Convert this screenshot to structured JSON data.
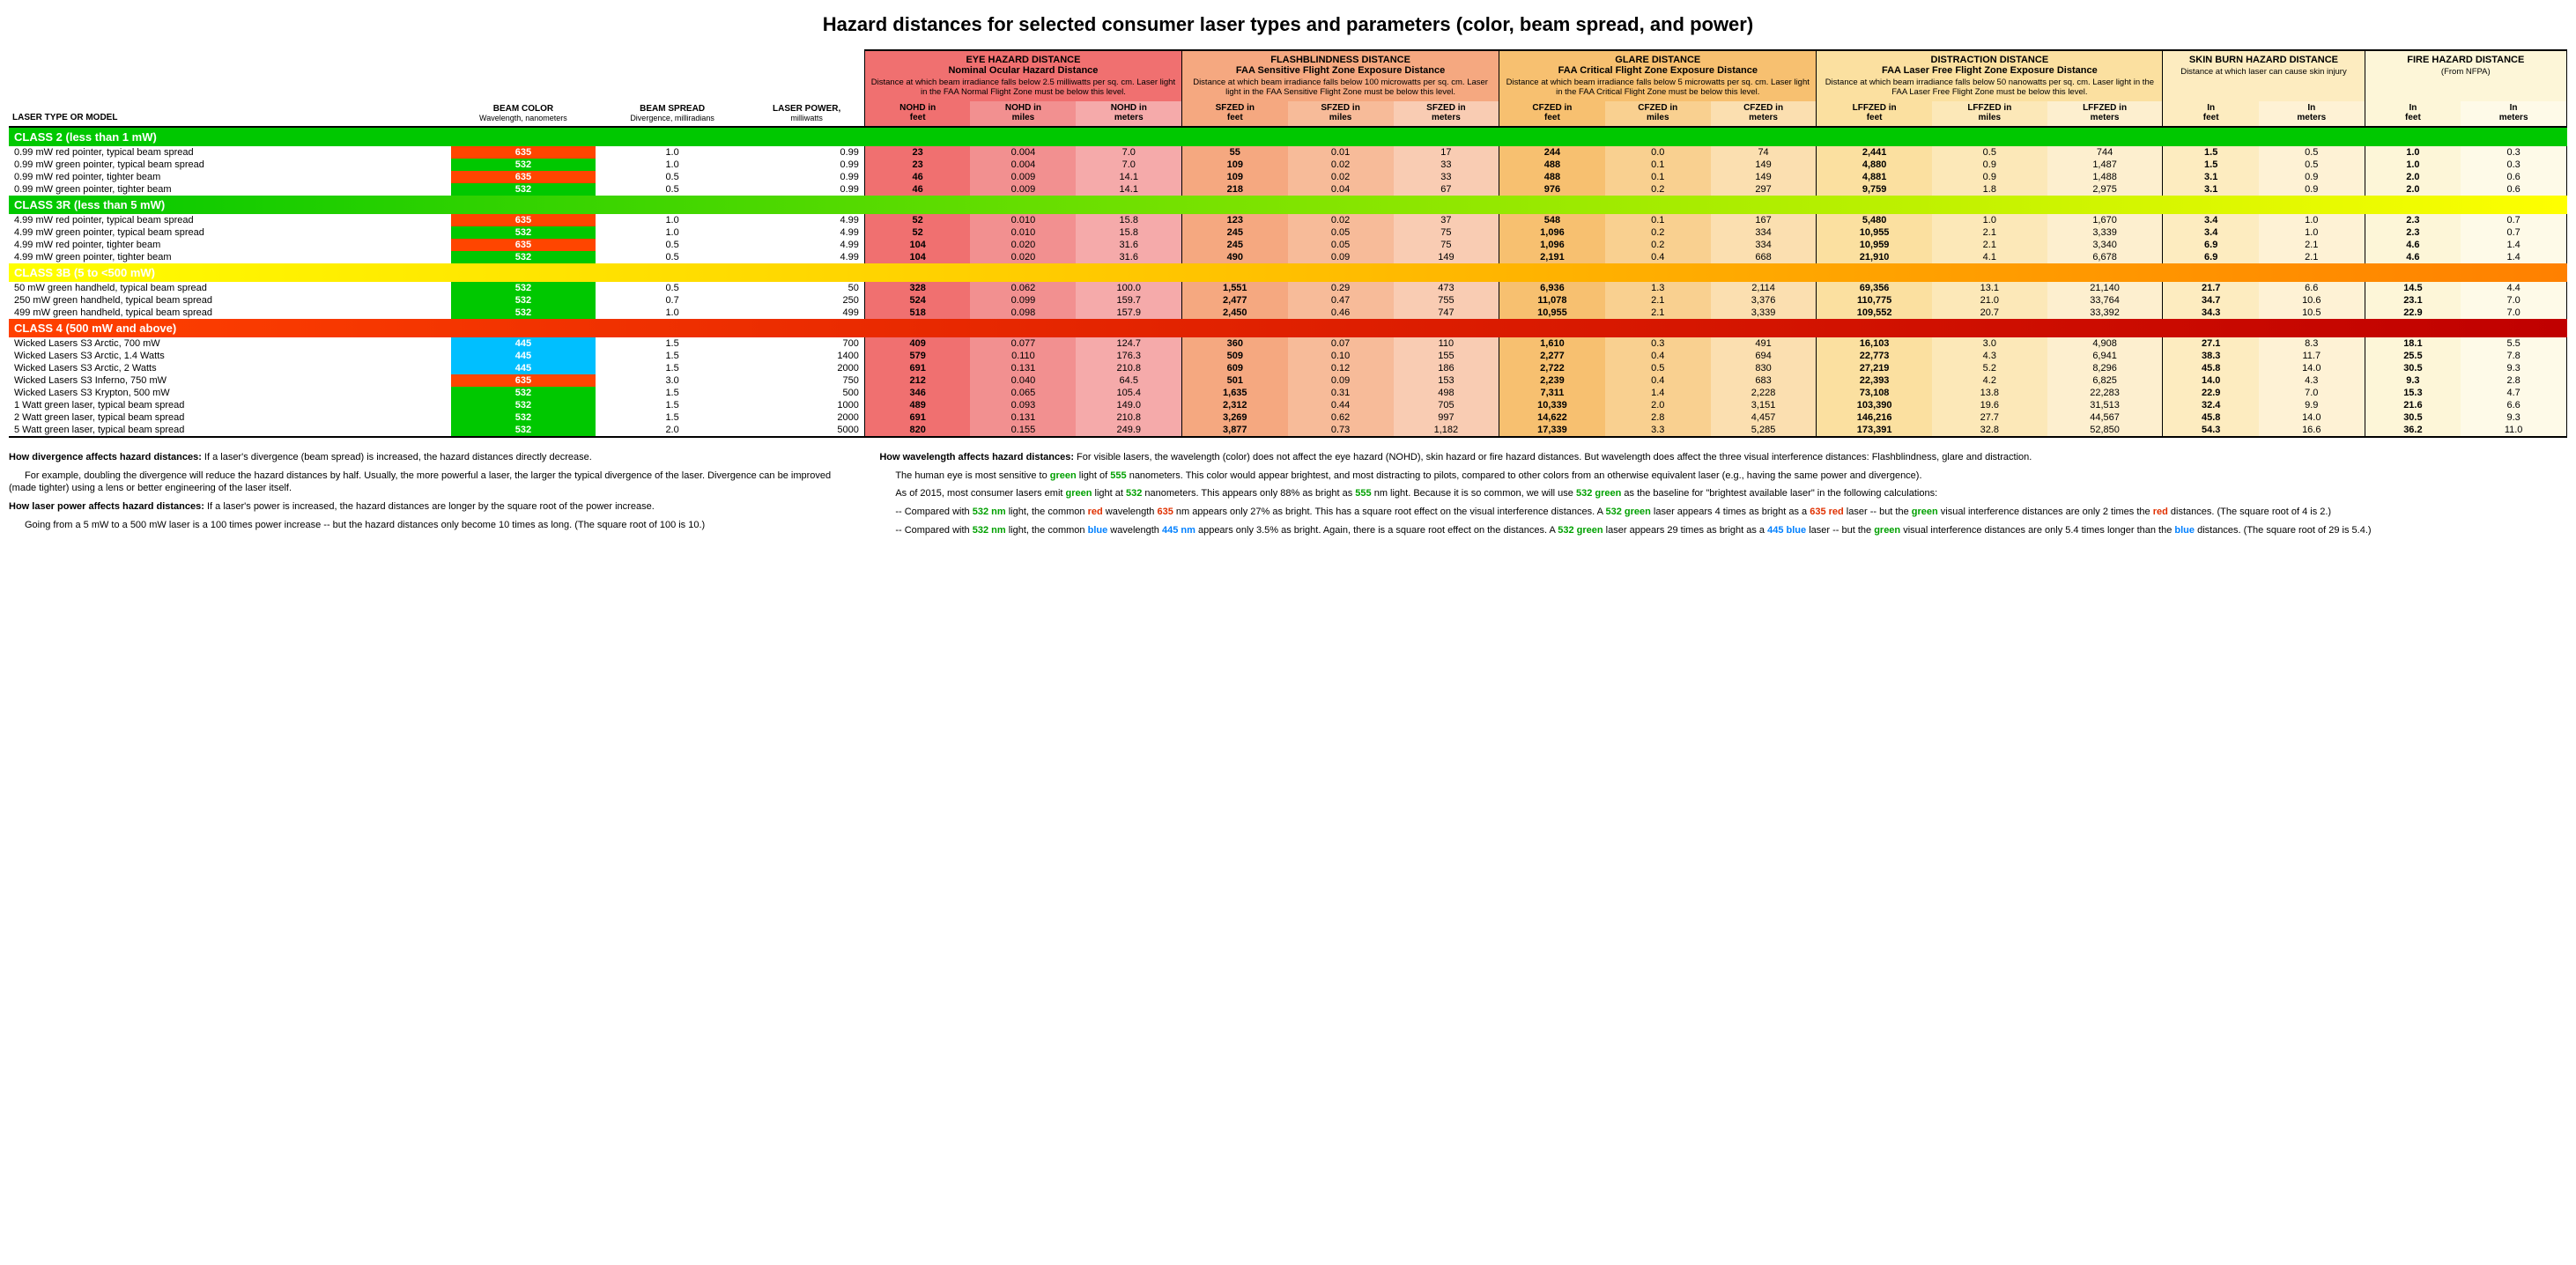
{
  "title": "Hazard distances for selected consumer laser types and parameters (color, beam spread, and power)",
  "leftHeaders": {
    "model": "LASER TYPE OR MODEL",
    "color": "BEAM COLOR",
    "colorSub": "Wavelength, nanometers",
    "spread": "BEAM SPREAD",
    "spreadSub": "Divergence, milliradians",
    "power": "LASER POWER,",
    "powerSub": "milliwatts"
  },
  "groups": [
    {
      "title": "EYE HAZARD DISTANCE",
      "sub": "Nominal Ocular Hazard Distance",
      "desc": "Distance at which beam irradiance falls below 2.5 milliwatts per sq. cm. Laser light in the FAA Normal Flight Zone must be below this level.",
      "cols": [
        "NOHD in feet",
        "NOHD in miles",
        "NOHD in meters"
      ],
      "cls": [
        "g-eye1",
        "g-eye2",
        "g-eye3"
      ],
      "hcls": "g-eye1"
    },
    {
      "title": "FLASHBLINDNESS DISTANCE",
      "sub": "FAA Sensitive Flight Zone Exposure Distance",
      "desc": "Distance at which beam irradiance falls below 100 microwatts per sq. cm. Laser light in the FAA Sensitive Flight Zone must be below this level.",
      "cols": [
        "SFZED in feet",
        "SFZED in miles",
        "SFZED in meters"
      ],
      "cls": [
        "g-flash1",
        "g-flash2",
        "g-flash3"
      ],
      "hcls": "g-flash1"
    },
    {
      "title": "GLARE DISTANCE",
      "sub": "FAA Critical Flight Zone Exposure Distance",
      "desc": "Distance at which beam irradiance falls below 5 microwatts per sq. cm. Laser light in the FAA Critical Flight Zone must be below this level.",
      "cols": [
        "CFZED in feet",
        "CFZED in miles",
        "CFZED in meters"
      ],
      "cls": [
        "g-glare1",
        "g-glare2",
        "g-glare3"
      ],
      "hcls": "g-glare1"
    },
    {
      "title": "DISTRACTION DISTANCE",
      "sub": "FAA Laser Free Flight Zone Exposure Distance",
      "desc": "Distance at which beam irradiance falls below 50 nanowatts per sq. cm. Laser light in the FAA Laser Free Flight Zone must be below this level.",
      "cols": [
        "LFFZED in feet",
        "LFFZED in miles",
        "LFFZED in meters"
      ],
      "cls": [
        "g-dist1",
        "g-dist2",
        "g-dist3"
      ],
      "hcls": "g-dist1"
    },
    {
      "title": "SKIN BURN HAZARD DISTANCE",
      "sub": "",
      "desc": "Distance at which laser can cause skin injury",
      "cols": [
        "In feet",
        "In meters"
      ],
      "cls": [
        "g-skin1",
        "g-skin2"
      ],
      "hcls": "g-skin1"
    },
    {
      "title": "FIRE HAZARD DISTANCE",
      "sub": "",
      "desc": "(From NFPA)",
      "cols": [
        "In feet",
        "In meters"
      ],
      "cls": [
        "g-fire1",
        "g-fire2"
      ],
      "hcls": "g-fire1"
    }
  ],
  "sections": [
    {
      "label": "CLASS 2 (less than 1 mW)",
      "cls": "class2-bg",
      "rows": [
        {
          "name": "0.99 mW red pointer, typical beam spread",
          "wl": "635",
          "wlc": "wl-red",
          "div": "1.0",
          "pw": "0.99",
          "v": [
            "23",
            "0.004",
            "7.0",
            "55",
            "0.01",
            "17",
            "244",
            "0.0",
            "74",
            "2,441",
            "0.5",
            "744",
            "1.5",
            "0.5",
            "1.0",
            "0.3"
          ]
        },
        {
          "name": "0.99 mW green pointer, typical beam spread",
          "wl": "532",
          "wlc": "wl-green",
          "div": "1.0",
          "pw": "0.99",
          "v": [
            "23",
            "0.004",
            "7.0",
            "109",
            "0.02",
            "33",
            "488",
            "0.1",
            "149",
            "4,880",
            "0.9",
            "1,487",
            "1.5",
            "0.5",
            "1.0",
            "0.3"
          ]
        },
        {
          "name": "0.99 mW red pointer, tighter beam",
          "wl": "635",
          "wlc": "wl-red",
          "div": "0.5",
          "pw": "0.99",
          "v": [
            "46",
            "0.009",
            "14.1",
            "109",
            "0.02",
            "33",
            "488",
            "0.1",
            "149",
            "4,881",
            "0.9",
            "1,488",
            "3.1",
            "0.9",
            "2.0",
            "0.6"
          ]
        },
        {
          "name": "0.99 mW green pointer, tighter beam",
          "wl": "532",
          "wlc": "wl-green",
          "div": "0.5",
          "pw": "0.99",
          "v": [
            "46",
            "0.009",
            "14.1",
            "218",
            "0.04",
            "67",
            "976",
            "0.2",
            "297",
            "9,759",
            "1.8",
            "2,975",
            "3.1",
            "0.9",
            "2.0",
            "0.6"
          ]
        }
      ]
    },
    {
      "label": "CLASS 3R (less than 5 mW)",
      "cls": "class3r-bg",
      "rows": [
        {
          "name": "4.99 mW red pointer, typical beam spread",
          "wl": "635",
          "wlc": "wl-red",
          "div": "1.0",
          "pw": "4.99",
          "v": [
            "52",
            "0.010",
            "15.8",
            "123",
            "0.02",
            "37",
            "548",
            "0.1",
            "167",
            "5,480",
            "1.0",
            "1,670",
            "3.4",
            "1.0",
            "2.3",
            "0.7"
          ]
        },
        {
          "name": "4.99 mW green pointer, typical beam spread",
          "wl": "532",
          "wlc": "wl-green",
          "div": "1.0",
          "pw": "4.99",
          "v": [
            "52",
            "0.010",
            "15.8",
            "245",
            "0.05",
            "75",
            "1,096",
            "0.2",
            "334",
            "10,955",
            "2.1",
            "3,339",
            "3.4",
            "1.0",
            "2.3",
            "0.7"
          ]
        },
        {
          "name": "4.99 mW red pointer, tighter beam",
          "wl": "635",
          "wlc": "wl-red",
          "div": "0.5",
          "pw": "4.99",
          "v": [
            "104",
            "0.020",
            "31.6",
            "245",
            "0.05",
            "75",
            "1,096",
            "0.2",
            "334",
            "10,959",
            "2.1",
            "3,340",
            "6.9",
            "2.1",
            "4.6",
            "1.4"
          ]
        },
        {
          "name": "4.99 mW green pointer, tighter beam",
          "wl": "532",
          "wlc": "wl-green",
          "div": "0.5",
          "pw": "4.99",
          "v": [
            "104",
            "0.020",
            "31.6",
            "490",
            "0.09",
            "149",
            "2,191",
            "0.4",
            "668",
            "21,910",
            "4.1",
            "6,678",
            "6.9",
            "2.1",
            "4.6",
            "1.4"
          ]
        }
      ]
    },
    {
      "label": "CLASS 3B (5 to <500 mW)",
      "cls": "class3b-bg",
      "rows": [
        {
          "name": "50 mW green handheld, typical beam spread",
          "wl": "532",
          "wlc": "wl-green",
          "div": "0.5",
          "pw": "50",
          "v": [
            "328",
            "0.062",
            "100.0",
            "1,551",
            "0.29",
            "473",
            "6,936",
            "1.3",
            "2,114",
            "69,356",
            "13.1",
            "21,140",
            "21.7",
            "6.6",
            "14.5",
            "4.4"
          ]
        },
        {
          "name": "250 mW green handheld, typical beam spread",
          "wl": "532",
          "wlc": "wl-green",
          "div": "0.7",
          "pw": "250",
          "v": [
            "524",
            "0.099",
            "159.7",
            "2,477",
            "0.47",
            "755",
            "11,078",
            "2.1",
            "3,376",
            "110,775",
            "21.0",
            "33,764",
            "34.7",
            "10.6",
            "23.1",
            "7.0"
          ]
        },
        {
          "name": "499 mW green handheld, typical beam spread",
          "wl": "532",
          "wlc": "wl-green",
          "div": "1.0",
          "pw": "499",
          "v": [
            "518",
            "0.098",
            "157.9",
            "2,450",
            "0.46",
            "747",
            "10,955",
            "2.1",
            "3,339",
            "109,552",
            "20.7",
            "33,392",
            "34.3",
            "10.5",
            "22.9",
            "7.0"
          ]
        }
      ]
    },
    {
      "label": "CLASS 4 (500 mW and above)",
      "cls": "class4-bg",
      "rows": [
        {
          "name": "Wicked Lasers S3 Arctic, 700 mW",
          "wl": "445",
          "wlc": "wl-blue",
          "div": "1.5",
          "pw": "700",
          "v": [
            "409",
            "0.077",
            "124.7",
            "360",
            "0.07",
            "110",
            "1,610",
            "0.3",
            "491",
            "16,103",
            "3.0",
            "4,908",
            "27.1",
            "8.3",
            "18.1",
            "5.5"
          ]
        },
        {
          "name": "Wicked Lasers S3 Arctic, 1.4 Watts",
          "wl": "445",
          "wlc": "wl-blue",
          "div": "1.5",
          "pw": "1400",
          "v": [
            "579",
            "0.110",
            "176.3",
            "509",
            "0.10",
            "155",
            "2,277",
            "0.4",
            "694",
            "22,773",
            "4.3",
            "6,941",
            "38.3",
            "11.7",
            "25.5",
            "7.8"
          ]
        },
        {
          "name": "Wicked Lasers S3 Arctic, 2 Watts",
          "wl": "445",
          "wlc": "wl-blue",
          "div": "1.5",
          "pw": "2000",
          "v": [
            "691",
            "0.131",
            "210.8",
            "609",
            "0.12",
            "186",
            "2,722",
            "0.5",
            "830",
            "27,219",
            "5.2",
            "8,296",
            "45.8",
            "14.0",
            "30.5",
            "9.3"
          ]
        },
        {
          "name": "Wicked Lasers S3 Inferno, 750 mW",
          "wl": "635",
          "wlc": "wl-red",
          "div": "3.0",
          "pw": "750",
          "v": [
            "212",
            "0.040",
            "64.5",
            "501",
            "0.09",
            "153",
            "2,239",
            "0.4",
            "683",
            "22,393",
            "4.2",
            "6,825",
            "14.0",
            "4.3",
            "9.3",
            "2.8"
          ]
        },
        {
          "name": "Wicked Lasers S3 Krypton, 500 mW",
          "wl": "532",
          "wlc": "wl-green",
          "div": "1.5",
          "pw": "500",
          "v": [
            "346",
            "0.065",
            "105.4",
            "1,635",
            "0.31",
            "498",
            "7,311",
            "1.4",
            "2,228",
            "73,108",
            "13.8",
            "22,283",
            "22.9",
            "7.0",
            "15.3",
            "4.7"
          ]
        },
        {
          "name": "1 Watt green laser, typical beam spread",
          "wl": "532",
          "wlc": "wl-green",
          "div": "1.5",
          "pw": "1000",
          "v": [
            "489",
            "0.093",
            "149.0",
            "2,312",
            "0.44",
            "705",
            "10,339",
            "2.0",
            "3,151",
            "103,390",
            "19.6",
            "31,513",
            "32.4",
            "9.9",
            "21.6",
            "6.6"
          ]
        },
        {
          "name": "2 Watt green laser, typical beam spread",
          "wl": "532",
          "wlc": "wl-green",
          "div": "1.5",
          "pw": "2000",
          "v": [
            "691",
            "0.131",
            "210.8",
            "3,269",
            "0.62",
            "997",
            "14,622",
            "2.8",
            "4,457",
            "146,216",
            "27.7",
            "44,567",
            "45.8",
            "14.0",
            "30.5",
            "9.3"
          ]
        },
        {
          "name": "5 Watt green laser, typical beam spread",
          "wl": "532",
          "wlc": "wl-green",
          "div": "2.0",
          "pw": "5000",
          "v": [
            "820",
            "0.155",
            "249.9",
            "3,877",
            "0.73",
            "1,182",
            "17,339",
            "3.3",
            "5,285",
            "173,391",
            "32.8",
            "52,850",
            "54.3",
            "16.6",
            "36.2",
            "11.0"
          ]
        }
      ]
    }
  ],
  "notes": {
    "left": [
      {
        "b": "How divergence affects hazard distances:",
        "t": " If a laser's divergence (beam spread) is increased, the hazard distances directly decrease."
      },
      {
        "indent": true,
        "t": "For example, doubling the divergence will reduce the hazard distances by half. Usually, the more powerful a laser, the larger the typical divergence of the laser. Divergence can be improved (made tighter) using a lens or better engineering of the laser itself."
      },
      {
        "b": "How laser power affects hazard distances:",
        "t": " If a laser's power is increased, the hazard distances are longer by the square root of the power increase."
      },
      {
        "indent": true,
        "t": "Going from a 5 mW to a 500 mW laser is a 100 times power increase -- but the hazard distances only become 10 times as long. (The square root of 100 is 10.)"
      }
    ],
    "right": [
      {
        "b": "How wavelength affects hazard distances:",
        "t": " For visible lasers, the wavelength (color) does not affect the eye hazard (NOHD), skin hazard or fire hazard distances. But wavelength does affect the three visual interference distances: Flashblindness, glare and distraction."
      },
      {
        "indent": true,
        "html": "The human eye is most sensitive to <span class='c-green'>green</span> light of <span class='c-green'>555</span> nanometers. This color would appear brightest, and most distracting to pilots, compared to other colors from an otherwise equivalent laser (e.g., having the same power and divergence)."
      },
      {
        "indent": true,
        "html": "As of 2015, most consumer lasers emit <span class='c-green'>green</span> light at <span class='c-green'>532</span> nanometers. This appears only 88% as bright as <span class='c-green'>555</span> nm light. Because it is so common, we will use <span class='c-green'>532 green</span> as the baseline for \"brightest available laser\" in the following calculations:"
      },
      {
        "indent": true,
        "html": "-- Compared with <span class='c-green'>532 nm</span> light, the common <span class='c-red'>red</span> wavelength <span class='c-red'>635</span> nm appears only 27% as bright. This has a square root effect on the visual interference distances. A <span class='c-green'>532 green</span> laser appears 4 times as bright as a <span class='c-red'>635 red</span> laser -- but the <span class='c-green'>green</span> visual interference distances are only 2 times the <span class='c-red'>red</span> distances. (The square root of 4 is 2.)"
      },
      {
        "indent": true,
        "html": "-- Compared with <span class='c-green'>532 nm</span> light, the common <span class='c-blue'>blue</span> wavelength <span class='c-blue'>445 nm</span> appears only 3.5% as bright. Again, there is a square root effect on the distances. A <span class='c-green'>532 green</span> laser appears 29 times as bright as a <span class='c-blue'>445 blue</span> laser -- but the <span class='c-green'>green</span> visual interference distances are only 5.4 times longer than the <span class='c-blue'>blue</span> distances. (The square root of 29 is 5.4.)"
      }
    ]
  }
}
